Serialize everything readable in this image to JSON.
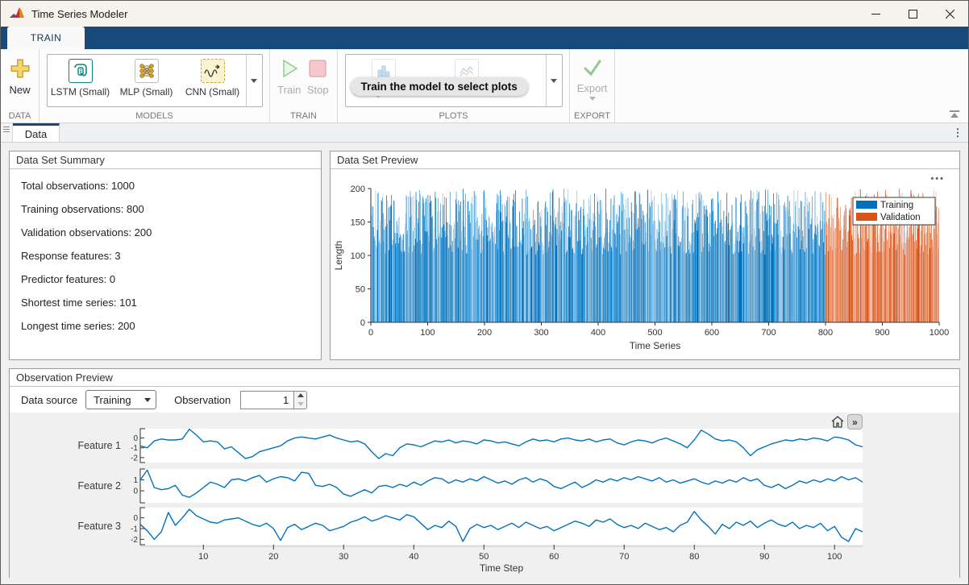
{
  "window": {
    "title": "Time Series Modeler"
  },
  "ribbon": {
    "tab": "TRAIN",
    "data_section": {
      "new_label": "New",
      "section": "DATA"
    },
    "models_section": {
      "items": [
        "LSTM (Small)",
        "MLP (Small)",
        "CNN (Small)"
      ],
      "section": "MODELS"
    },
    "train_section": {
      "train": "Train",
      "stop": "Stop",
      "section": "TRAIN"
    },
    "plots_section": {
      "tooltip": "Train the model to select plots",
      "histogram": "Histogram",
      "section": "PLOTS"
    },
    "export_section": {
      "export": "Export",
      "section": "EXPORT"
    }
  },
  "doc_tabs": {
    "active": "Data"
  },
  "icons": {
    "panel_menu": "•••",
    "tab_overflow": "⋮",
    "pan_right": "»"
  },
  "summary": {
    "title": "Data Set Summary",
    "stats": [
      "Total observations: 1000",
      "Training observations: 800",
      "Validation observations: 200",
      "Response features: 3",
      "Predictor features: 0",
      "Shortest time series: 101",
      "Longest time series: 200"
    ]
  },
  "preview": {
    "title": "Data Set Preview"
  },
  "observation": {
    "title": "Observation Preview",
    "data_source_label": "Data source",
    "data_source_value": "Training",
    "observation_label": "Observation",
    "observation_value": "1"
  },
  "colors": {
    "training": "#0072BD",
    "validation": "#D95319",
    "ribbon": "#17497B",
    "line": "#0072BD"
  },
  "chart_data": [
    {
      "type": "bar",
      "title": "Data Set Preview",
      "xlabel": "Time Series",
      "ylabel": "Length",
      "xlim": [
        0,
        1000
      ],
      "ylim": [
        0,
        200
      ],
      "xticks": [
        0,
        100,
        200,
        300,
        400,
        500,
        600,
        700,
        800,
        900,
        1000
      ],
      "yticks": [
        0,
        50,
        100,
        150,
        200
      ],
      "n_series": 1000,
      "training_count": 800,
      "validation_count": 200,
      "length_range": [
        101,
        200
      ],
      "legend": [
        {
          "label": "Training",
          "color": "#0072BD"
        },
        {
          "label": "Validation",
          "color": "#D95319"
        }
      ],
      "legend_position": "northeast",
      "render_seed": 20
    },
    {
      "type": "line",
      "xlabel": "Time Step",
      "xticks": [
        10,
        20,
        30,
        40,
        50,
        60,
        70,
        80,
        90,
        100
      ],
      "x_count": 104,
      "line_color": "#0072BD",
      "series": [
        {
          "name": "Feature 1",
          "yticks": [
            0,
            -1,
            -2
          ],
          "ylim": [
            -2.5,
            0.95
          ],
          "values": [
            -0.8,
            -1.0,
            -0.3,
            -0.1,
            -0.2,
            -0.2,
            -0.1,
            0.9,
            0.3,
            -0.4,
            -0.3,
            -0.4,
            -1.1,
            -0.9,
            -1.5,
            -2.1,
            -1.9,
            -1.4,
            -1.2,
            -1.0,
            -0.8,
            -0.3,
            0.0,
            0.1,
            0.0,
            -0.1,
            0.1,
            0.3,
            0.0,
            -0.2,
            -0.4,
            -0.3,
            -0.6,
            -1.4,
            -2.1,
            -1.6,
            -1.8,
            -1.0,
            -0.6,
            -0.7,
            -0.9,
            -0.6,
            -0.3,
            -0.4,
            -0.2,
            -0.5,
            -0.3,
            -0.4,
            -0.6,
            -0.2,
            -0.3,
            -0.5,
            -0.4,
            -0.6,
            -0.8,
            -0.4,
            -0.1,
            -0.3,
            -0.2,
            -0.4,
            -0.1,
            0.0,
            -0.2,
            -0.3,
            -0.1,
            -0.4,
            -0.2,
            -0.1,
            -0.5,
            -0.7,
            -0.4,
            -0.2,
            -0.3,
            -0.5,
            -0.2,
            0.0,
            -0.3,
            -0.6,
            -1.0,
            -0.2,
            0.8,
            0.4,
            -0.1,
            -0.3,
            -0.2,
            -0.4,
            -1.0,
            -1.8,
            -1.2,
            -0.9,
            -0.6,
            -0.4,
            -0.2,
            -0.3,
            -0.1,
            -0.2,
            0.0,
            -0.1,
            -0.3,
            0.1,
            0.0,
            -0.2,
            -0.7,
            -0.9
          ]
        },
        {
          "name": "Feature 2",
          "yticks": [
            1,
            0
          ],
          "ylim": [
            -1.1,
            2.0
          ],
          "values": [
            1.0,
            1.9,
            0.3,
            0.1,
            0.2,
            0.5,
            -0.4,
            -0.6,
            -0.2,
            0.3,
            0.8,
            0.6,
            0.3,
            1.0,
            1.1,
            0.9,
            1.2,
            1.4,
            0.8,
            1.1,
            1.3,
            1.2,
            0.9,
            1.7,
            1.6,
            0.5,
            0.4,
            0.6,
            0.3,
            -0.3,
            -0.5,
            -0.2,
            0.1,
            -0.2,
            0.4,
            0.5,
            0.3,
            0.6,
            0.4,
            0.8,
            0.5,
            0.9,
            1.2,
            1.1,
            0.7,
            1.0,
            0.8,
            1.1,
            0.9,
            1.3,
            1.0,
            0.7,
            0.9,
            0.6,
            1.0,
            1.2,
            0.8,
            1.1,
            0.9,
            0.4,
            0.2,
            0.5,
            0.8,
            0.3,
            0.6,
            1.0,
            0.8,
            1.1,
            0.9,
            1.2,
            1.0,
            1.3,
            1.1,
            0.9,
            1.2,
            0.8,
            1.0,
            0.7,
            0.9,
            1.1,
            0.8,
            0.6,
            0.9,
            0.7,
            1.0,
            0.8,
            1.2,
            0.9,
            1.1,
            0.5,
            0.3,
            0.6,
            0.2,
            0.5,
            0.9,
            0.7,
            1.0,
            0.8,
            1.1,
            0.9,
            1.3,
            1.0,
            1.2,
            0.8
          ]
        },
        {
          "name": "Feature 3",
          "yticks": [
            0,
            -1,
            -2
          ],
          "ylim": [
            -2.5,
            0.95
          ],
          "values": [
            -0.6,
            -1.2,
            -2.0,
            -1.3,
            0.5,
            -0.7,
            0.0,
            0.8,
            0.2,
            -0.1,
            -0.4,
            -0.5,
            -0.2,
            -0.1,
            0.0,
            -0.3,
            -0.6,
            -0.8,
            -0.5,
            -1.0,
            -2.1,
            -0.9,
            -0.6,
            -1.1,
            -0.8,
            -0.5,
            -0.7,
            -1.2,
            -1.0,
            -0.8,
            -0.4,
            -0.2,
            0.1,
            -0.3,
            -0.1,
            0.2,
            0.0,
            -0.2,
            0.3,
            0.1,
            -0.5,
            -1.1,
            -0.7,
            -0.9,
            -0.3,
            -0.8,
            -2.2,
            -1.0,
            -0.6,
            -0.9,
            -0.7,
            -1.1,
            -0.8,
            -0.5,
            -0.9,
            -0.4,
            -0.7,
            -1.0,
            -0.8,
            -1.2,
            -0.9,
            -0.6,
            -0.3,
            -0.5,
            -0.8,
            -0.2,
            -0.4,
            -0.1,
            -0.6,
            -0.9,
            -0.7,
            -1.0,
            -0.5,
            -0.8,
            -1.1,
            -0.9,
            -1.3,
            -0.7,
            -0.4,
            0.6,
            -0.2,
            -0.8,
            -1.5,
            -0.6,
            -1.0,
            -0.4,
            -0.7,
            -0.3,
            -0.9,
            -0.5,
            -0.2,
            -0.6,
            -0.8,
            -0.4,
            -1.0,
            -0.7,
            -0.9,
            -0.5,
            -1.2,
            -0.8,
            -1.8,
            -2.2,
            -1.0,
            -1.3
          ]
        }
      ]
    }
  ]
}
